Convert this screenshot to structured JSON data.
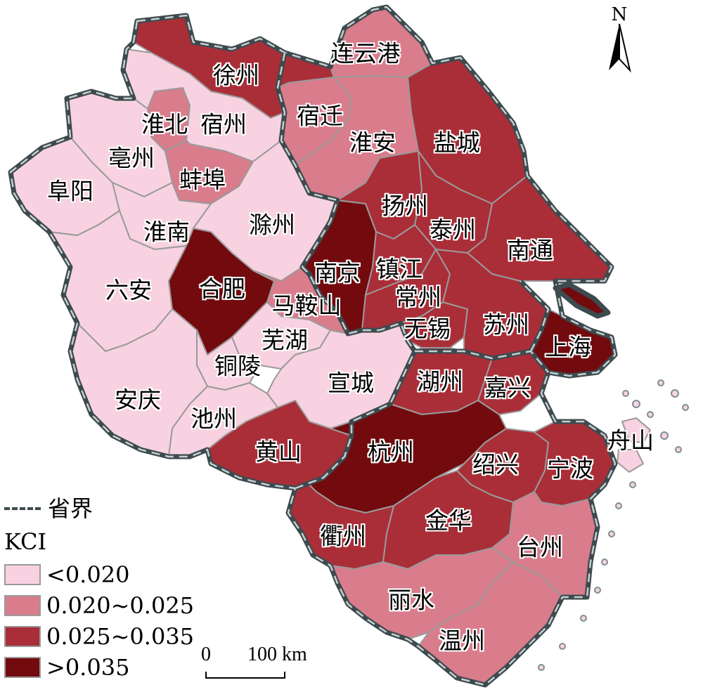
{
  "legend": {
    "border_label": "省界",
    "title": "KCI",
    "classes": [
      {
        "label": "<0.020",
        "color": "#f8d2e1"
      },
      {
        "label": "0.020~0.025",
        "color": "#d97c8c"
      },
      {
        "label": "0.025~0.035",
        "color": "#aa2e38"
      },
      {
        "label": ">0.035",
        "color": "#730a0e"
      }
    ]
  },
  "north_arrow": {
    "label": "N"
  },
  "scale_bar": {
    "zero": "0",
    "distance": "100 km"
  },
  "cities": [
    {
      "name": "徐州",
      "class": 2
    },
    {
      "name": "连云港",
      "class": 1
    },
    {
      "name": "宿迁",
      "class": 1
    },
    {
      "name": "淮安",
      "class": 1
    },
    {
      "name": "盐城",
      "class": 2
    },
    {
      "name": "淮北",
      "class": 1
    },
    {
      "name": "宿州",
      "class": 0
    },
    {
      "name": "亳州",
      "class": 0
    },
    {
      "name": "阜阳",
      "class": 0
    },
    {
      "name": "蚌埠",
      "class": 1
    },
    {
      "name": "淮南",
      "class": 0
    },
    {
      "name": "滁州",
      "class": 0
    },
    {
      "name": "扬州",
      "class": 2
    },
    {
      "name": "泰州",
      "class": 2
    },
    {
      "name": "南通",
      "class": 2
    },
    {
      "name": "六安",
      "class": 0
    },
    {
      "name": "合肥",
      "class": 3
    },
    {
      "name": "南京",
      "class": 3
    },
    {
      "name": "镇江",
      "class": 2
    },
    {
      "name": "常州",
      "class": 2
    },
    {
      "name": "马鞍山",
      "class": 1
    },
    {
      "name": "芜湖",
      "class": 0
    },
    {
      "name": "无锡",
      "class": 2
    },
    {
      "name": "苏州",
      "class": 2
    },
    {
      "name": "上海",
      "class": 3
    },
    {
      "name": "铜陵",
      "class": 0
    },
    {
      "name": "宣城",
      "class": 0
    },
    {
      "name": "湖州",
      "class": 2
    },
    {
      "name": "嘉兴",
      "class": 2
    },
    {
      "name": "安庆",
      "class": 0
    },
    {
      "name": "池州",
      "class": 0
    },
    {
      "name": "黄山",
      "class": 2
    },
    {
      "name": "杭州",
      "class": 3
    },
    {
      "name": "绍兴",
      "class": 2
    },
    {
      "name": "宁波",
      "class": 2
    },
    {
      "name": "舟山",
      "class": 0
    },
    {
      "name": "衢州",
      "class": 2
    },
    {
      "name": "金华",
      "class": 2
    },
    {
      "name": "台州",
      "class": 1
    },
    {
      "name": "丽水",
      "class": 1
    },
    {
      "name": "温州",
      "class": 1
    }
  ]
}
